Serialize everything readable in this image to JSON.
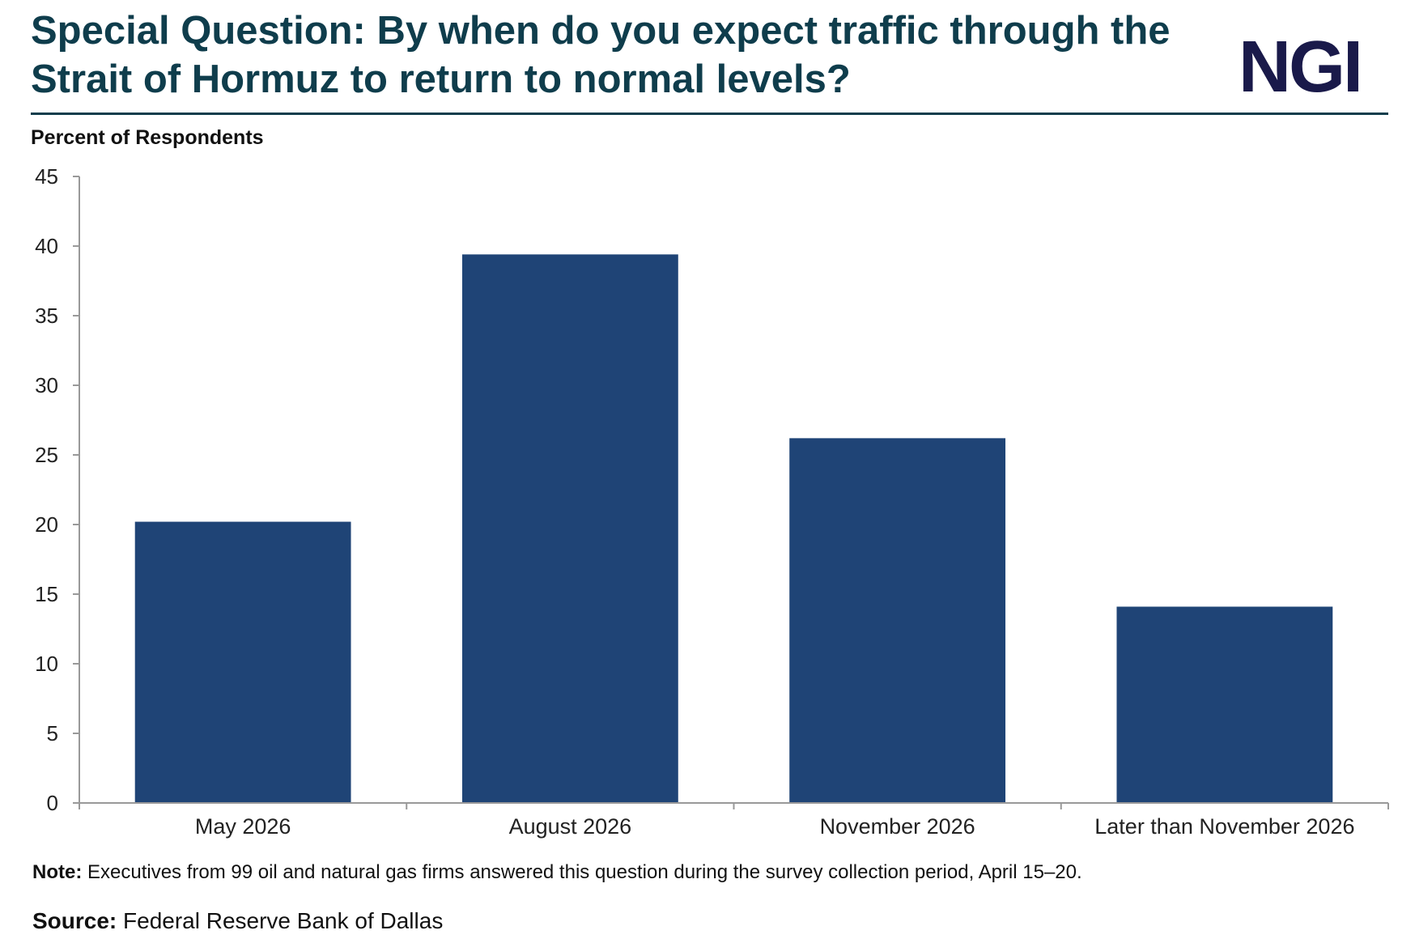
{
  "header": {
    "title": "Special Question: By when do you expect traffic through the Strait of Hormuz to return to normal levels?",
    "logo": "NGI"
  },
  "footer": {
    "note_label": "Note:",
    "note_text": " Executives from 99 oil and natural gas firms answered this question during the survey collection period, April 15–20.",
    "source_label": "Source:",
    "source_text": " Federal Reserve Bank of Dallas"
  },
  "colors": {
    "bar": "#1f4476",
    "title": "#0f3d4c",
    "logo": "#1a1a4a"
  },
  "chart_data": {
    "type": "bar",
    "title": "",
    "xlabel": "",
    "ylabel": "Percent of Respondents",
    "categories": [
      "May 2026",
      "August 2026",
      "November 2026",
      "Later than November 2026"
    ],
    "values": [
      20.2,
      39.4,
      26.2,
      14.1
    ],
    "ylim": [
      0,
      45
    ],
    "yticks": [
      0,
      5,
      10,
      15,
      20,
      25,
      30,
      35,
      40,
      45
    ],
    "grid": false,
    "legend": "none"
  }
}
